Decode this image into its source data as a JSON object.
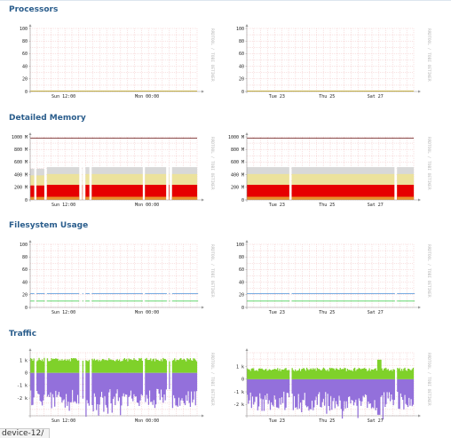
{
  "sections": [
    {
      "title": "Processors",
      "type": "processors"
    },
    {
      "title": "Detailed Memory",
      "type": "memory"
    },
    {
      "title": "Filesystem Usage",
      "type": "filesystem"
    },
    {
      "title": "Traffic",
      "type": "traffic"
    }
  ],
  "watermark": "RRDTOOL / TOBI OETIKER",
  "x_labels_day": [
    "Sun 12:00",
    "Mon 00:00"
  ],
  "x_labels_week": [
    "Tue 23",
    "Thu 25",
    "Sat 27"
  ],
  "y_labels_percent": [
    "100",
    "80",
    "60",
    "40",
    "20",
    "0"
  ],
  "y_labels_memory": [
    "1000 M",
    "800 M",
    "600 M",
    "400 M",
    "200 M",
    "0"
  ],
  "y_labels_traffic_day": [
    "1 k",
    "0",
    "-1 k",
    "-2 k"
  ],
  "y_labels_traffic_week": [
    "1 k",
    "0",
    "-1 k",
    "-2 k"
  ],
  "colors": {
    "title": "#2a5d8c",
    "grid": "#f2c4c4",
    "axis": "#999999",
    "memory_gray": "#d8d8d8",
    "memory_yellow": "#ece29c",
    "memory_red": "#e60000",
    "memory_orange": "#e8902a",
    "memory_line": "#7a3030",
    "fs_blue": "#4a90d9",
    "fs_green": "#2ecc40",
    "traffic_in": "#7fd12a",
    "traffic_out": "#9370db",
    "proc_line": "#c8a800"
  },
  "footer": {
    "url_text": "device-12/"
  }
}
